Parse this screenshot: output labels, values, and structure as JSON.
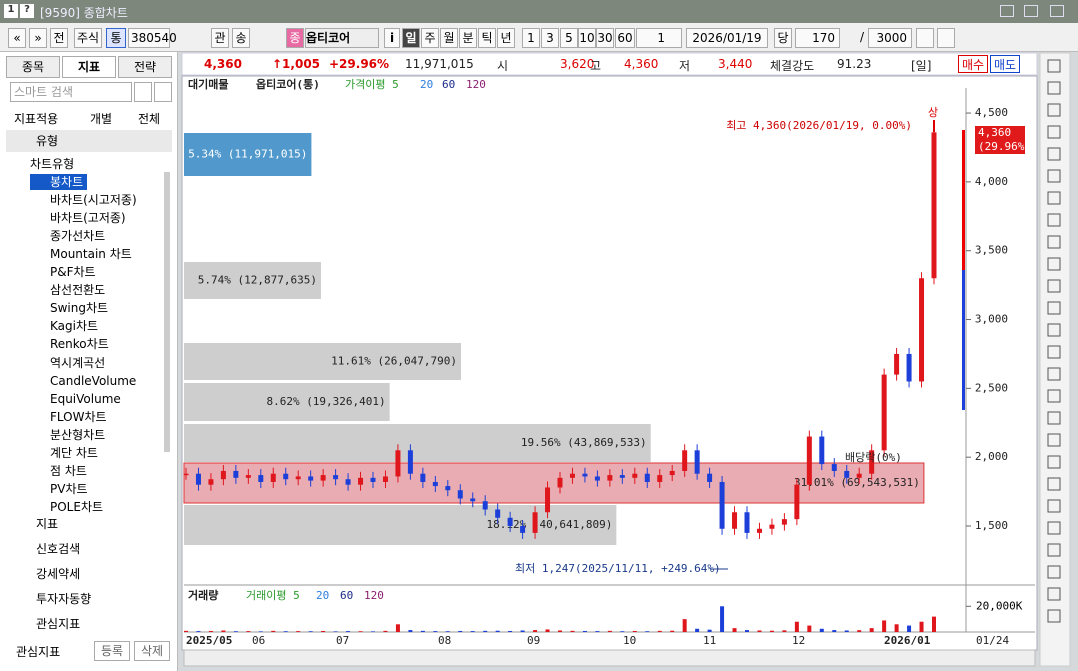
{
  "window": {
    "icons": [
      "1",
      "?"
    ],
    "title": "[9590] 종합차트"
  },
  "toolbar": {
    "items": [
      "«",
      "»",
      "전",
      "주식",
      "통",
      "380540",
      "관",
      "송"
    ],
    "stock_badge": "종",
    "stock_name": "옵티코어",
    "info": "i",
    "periods": [
      "일",
      "주",
      "월",
      "분",
      "틱",
      "년"
    ],
    "intervals": [
      "1",
      "3",
      "5",
      "10",
      "30",
      "60"
    ],
    "count_select": "1",
    "date": "2026/01/19",
    "current": "당",
    "count": "170",
    "slash": "/",
    "total": "3000"
  },
  "quote": {
    "price": "4,360",
    "change": "↑1,005",
    "rate": "+29.96%",
    "volume": "11,971,015",
    "open_label": "시",
    "open": "3,620",
    "high_label": "고",
    "high": "4,360",
    "low_label": "저",
    "low": "3,440",
    "strength_label": "체결강도",
    "strength": "91.23",
    "period": "[일]",
    "buy": "매수",
    "sell": "매도"
  },
  "sidebar": {
    "tabs": [
      "종목",
      "지표",
      "전략"
    ],
    "search": "스마트 검색",
    "apply_label": "지표적용",
    "apply_options": [
      "개별",
      "전체"
    ],
    "type_header": "유형",
    "type_group": "차트유형",
    "chart_types": [
      "봉차트",
      "바차트(시고저종)",
      "바차트(고저종)",
      "종가선차트",
      "Mountain 차트",
      "P&F차트",
      "삼선전환도",
      "Swing차트",
      "Kagi차트",
      "Renko차트",
      "역시계곡선",
      "CandleVolume",
      "EquiVolume",
      "FLOW차트",
      "분산형차트",
      "계단 차트",
      "점 차트",
      "PV차트",
      "POLE차트"
    ],
    "sections": [
      "지표",
      "신호검색",
      "강세약세",
      "투자자동향",
      "관심지표"
    ],
    "footer_label": "관심지표",
    "footer_buttons": [
      "등록",
      "삭제"
    ]
  },
  "chart_data": [
    {
      "type": "candlestick",
      "legend": [
        "대기매물",
        "옵티코어(통)",
        "가격이평 5",
        "20",
        "60",
        "120"
      ],
      "ylim": [
        1086,
        4682
      ],
      "yticks": [
        {
          "value": 1500,
          "label": "1,500"
        },
        {
          "value": 2000,
          "label": "2,000"
        },
        {
          "value": 2500,
          "label": "2,500"
        },
        {
          "value": 3000,
          "label": "3,000"
        },
        {
          "value": 3500,
          "label": "3,500"
        },
        {
          "value": 4000,
          "label": "4,000"
        },
        {
          "value": 4500,
          "label": "4,500"
        }
      ],
      "xtick_labels": [
        "2025/05",
        "06",
        "07",
        "08",
        "09",
        "10",
        "11",
        "12",
        "2026/01"
      ],
      "values": [
        1880,
        1800,
        1840,
        1900,
        1850,
        1870,
        1820,
        1880,
        1840,
        1860,
        1830,
        1870,
        1840,
        1800,
        1850,
        1820,
        1860,
        2050,
        1880,
        1820,
        1790,
        1760,
        1700,
        1680,
        1620,
        1560,
        1500,
        1450,
        1600,
        1780,
        1850,
        1880,
        1860,
        1830,
        1870,
        1850,
        1880,
        1820,
        1870,
        1900,
        2050,
        1880,
        1820,
        1480,
        1600,
        1450,
        1480,
        1510,
        1550,
        1800,
        2150,
        1950,
        1900,
        1850,
        1880,
        2050,
        2600,
        2750,
        2550,
        3300,
        4360
      ],
      "up_color": "#e0161d",
      "down_color": "#1b3fd8",
      "profile": [
        {
          "label": "5.34% (11,971,015)",
          "value": 5.34,
          "color": "#3e8ec6"
        },
        {
          "label": "5.74% (12,877,635)",
          "value": 5.74,
          "color": "#c9c9c9"
        },
        {
          "label": "11.61% (26,047,790)",
          "value": 11.61,
          "color": "#c9c9c9"
        },
        {
          "label": "8.62% (19,326,401)",
          "value": 8.62,
          "color": "#c9c9c9"
        },
        {
          "label": "19.56% (43,869,533)",
          "value": 19.56,
          "color": "#c9c9c9"
        },
        {
          "label": "31.01% (69,543,531)",
          "value": 31.01,
          "color": "#e8a3ab"
        },
        {
          "label": "18.12% (40,641,809)",
          "value": 18.12,
          "color": "#c9c9c9"
        }
      ],
      "annotations": {
        "limit_up": "상",
        "high": "최고 4,360(2026/01/19, 0.00%)",
        "low": "최저 1,247(2025/11/11, +249.64%)",
        "dividend": "배당락(0%)",
        "last_price": "4,360",
        "last_rate": "(29.96%)"
      }
    },
    {
      "type": "bar",
      "legend": [
        "거래량",
        "거래이평 5",
        "20",
        "60",
        "120"
      ],
      "ylim": [
        0,
        35000
      ],
      "yticks": [
        {
          "value": 20000,
          "label": "20,000K"
        }
      ],
      "values": [
        900,
        700,
        800,
        1200,
        600,
        700,
        500,
        900,
        600,
        700,
        600,
        800,
        500,
        700,
        600,
        500,
        900,
        6000,
        1500,
        900,
        700,
        600,
        800,
        700,
        900,
        1000,
        800,
        1200,
        1500,
        2000,
        1200,
        900,
        800,
        700,
        900,
        600,
        800,
        600,
        900,
        1000,
        10000,
        2500,
        1800,
        20000,
        3000,
        1500,
        1200,
        1000,
        1300,
        8000,
        5000,
        2500,
        1500,
        1200,
        1400,
        3000,
        9000,
        6000,
        5000,
        8000,
        11971
      ],
      "end_label": "01/24"
    }
  ]
}
